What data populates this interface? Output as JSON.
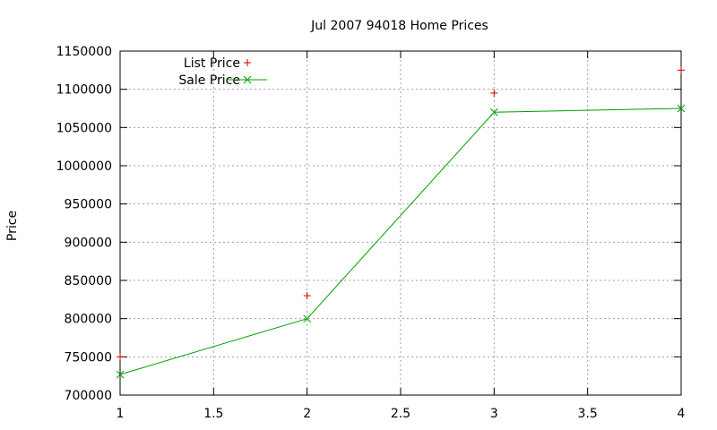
{
  "chart_data": {
    "type": "line",
    "title": "Jul 2007 94018 Home Prices",
    "xlabel": "",
    "ylabel": "Price",
    "xlim": [
      1,
      4
    ],
    "ylim": [
      700000,
      1150000
    ],
    "xticks": [
      1,
      1.5,
      2,
      2.5,
      3,
      3.5,
      4
    ],
    "xtick_labels": [
      "1",
      "1.5",
      "2",
      "2.5",
      "3",
      "3.5",
      "4"
    ],
    "yticks": [
      700000,
      750000,
      800000,
      850000,
      900000,
      950000,
      1000000,
      1050000,
      1100000,
      1150000
    ],
    "ytick_labels": [
      "700000",
      "750000",
      "800000",
      "850000",
      "900000",
      "950000",
      "1000000",
      "1050000",
      "1100000",
      "1150000"
    ],
    "grid": true,
    "legend_position": "top-left",
    "series": [
      {
        "name": "List Price",
        "style": "points",
        "marker": "+",
        "color": "#cc0000",
        "x": [
          1,
          2,
          3,
          4
        ],
        "y": [
          750000,
          830000,
          1095000,
          1125000
        ]
      },
      {
        "name": "Sale Price",
        "style": "linespoints",
        "marker": "x",
        "color": "#00a000",
        "x": [
          1,
          2,
          3,
          4
        ],
        "y": [
          727000,
          800000,
          1070000,
          1075000
        ]
      }
    ]
  }
}
